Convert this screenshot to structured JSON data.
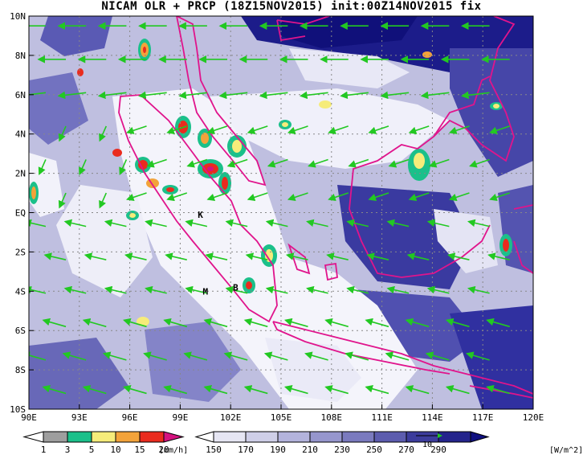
{
  "title": "NICAM OLR + PRCP (18Z15NOV2015) init:00Z14NOV2015 fix",
  "map": {
    "lon_labels": [
      "90E",
      "93E",
      "96E",
      "99E",
      "102E",
      "105E",
      "108E",
      "111E",
      "114E",
      "117E",
      "120E"
    ],
    "lat_labels": [
      "10N",
      "8N",
      "6N",
      "4N",
      "2N",
      "EQ",
      "2S",
      "4S",
      "6S",
      "8S",
      "10S"
    ],
    "markers": [
      {
        "label": "K",
        "lon": 100.2,
        "lat": -0.1
      },
      {
        "label": "B",
        "lon": 102.3,
        "lat": -3.8
      },
      {
        "label": "M",
        "lon": 100.5,
        "lat": -4.0
      }
    ],
    "colors": {
      "coast": "#e0148c",
      "wind": "#22c822",
      "grid": "#888888"
    }
  },
  "prcp_bar": {
    "ticks": [
      "1",
      "3",
      "5",
      "10",
      "15",
      "20"
    ],
    "unit": "[mm/h]",
    "colors": [
      "#9e9e9e",
      "#1bc08a",
      "#f6ec7a",
      "#f3a33a",
      "#ea2b1e",
      "#d4127f"
    ]
  },
  "olr_bar": {
    "ticks": [
      "150",
      "170",
      "190",
      "210",
      "230",
      "250",
      "270",
      "290"
    ],
    "unit": "[W/m^2]",
    "colors": [
      "#ffffff",
      "#e6e6f3",
      "#cfcfe8",
      "#b3b3dc",
      "#9696cd",
      "#7a7abe",
      "#5c5cae",
      "#3c3c9c",
      "#24248c",
      "#101080"
    ]
  },
  "vector_ref": "10"
}
